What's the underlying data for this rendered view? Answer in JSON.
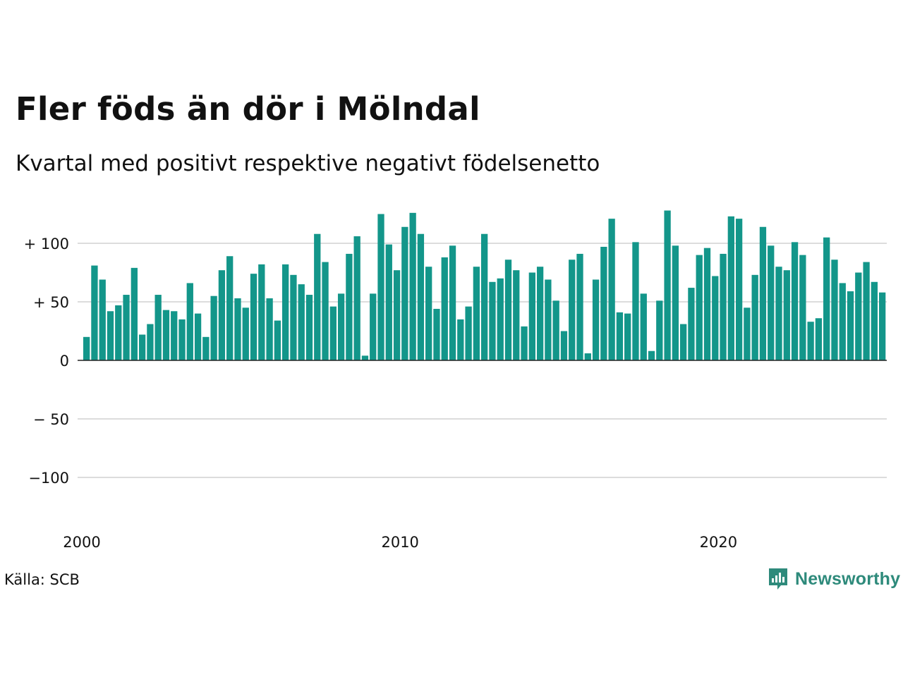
{
  "title": "Fler föds än dör i Mölndal",
  "subtitle": "Kvartal med positivt respektive negativt födelsenetto",
  "source": "Källa: SCB",
  "brand": {
    "name": "Newsworthy",
    "icon": "newsworthy-logo-icon"
  },
  "colors": {
    "positive": "#13968a",
    "negative": "#c8563a",
    "grid": "#dcdcdc",
    "axis": "#222222"
  },
  "chart_data": {
    "type": "bar",
    "title": "Fler föds än dör i Mölndal",
    "subtitle": "Kvartal med positivt respektive negativt födelsenetto",
    "xlabel": "",
    "ylabel": "",
    "x_start": 2000,
    "periods_per_year": 4,
    "ylim": [
      -130,
      135
    ],
    "grid": true,
    "x_ticks": [
      {
        "value": 2000,
        "label": "2000"
      },
      {
        "value": 2010,
        "label": "2010"
      },
      {
        "value": 2020,
        "label": "2020"
      }
    ],
    "y_ticks": [
      {
        "value": 100,
        "label": "+ 100"
      },
      {
        "value": 50,
        "label": "+  50"
      },
      {
        "value": 0,
        "label": "0"
      },
      {
        "value": -50,
        "label": "− 50"
      },
      {
        "value": -100,
        "label": "−100"
      }
    ],
    "values": [
      20,
      81,
      69,
      42,
      47,
      56,
      79,
      22,
      31,
      56,
      43,
      42,
      35,
      66,
      40,
      20,
      55,
      77,
      89,
      53,
      45,
      74,
      82,
      53,
      34,
      82,
      73,
      65,
      56,
      108,
      84,
      46,
      57,
      91,
      106,
      4,
      57,
      125,
      99,
      77,
      114,
      126,
      108,
      80,
      44,
      88,
      98,
      35,
      46,
      80,
      108,
      67,
      70,
      86,
      77,
      29,
      75,
      80,
      69,
      51,
      25,
      86,
      91,
      6,
      69,
      97,
      121,
      41,
      40,
      101,
      57,
      8,
      51,
      128,
      98,
      31,
      62,
      90,
      96,
      72,
      91,
      123,
      121,
      45,
      73,
      114,
      98,
      80,
      77,
      101,
      90,
      33,
      36,
      105,
      86,
      66,
      59,
      75,
      84,
      67,
      58
    ]
  }
}
